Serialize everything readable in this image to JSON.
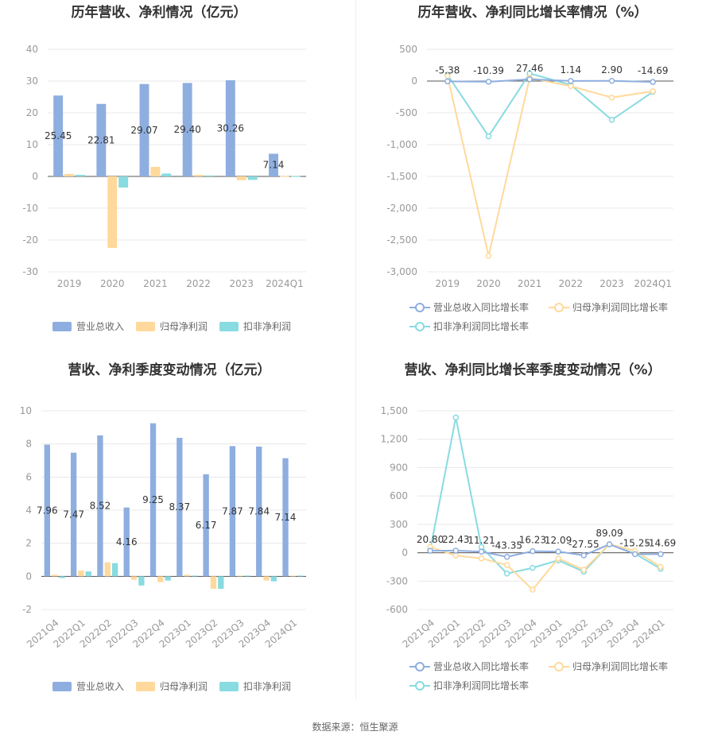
{
  "colors": {
    "revenue": "#8eaee0",
    "net_profit": "#ffd99b",
    "deducted_profit": "#88dbe0",
    "grid": "#e8e8e8",
    "axis": "#555555"
  },
  "source": "数据来源：恒生聚源",
  "chart_data": [
    {
      "type": "bar",
      "title": "历年营收、净利情况（亿元）",
      "categories": [
        "2019",
        "2020",
        "2021",
        "2022",
        "2023",
        "2024Q1"
      ],
      "ylim": [
        -30,
        40
      ],
      "yticks": [
        "40",
        "30",
        "20",
        "10",
        "0",
        "-10",
        "-20",
        "-30"
      ],
      "series": [
        {
          "name": "营业总收入",
          "values": [
            25.45,
            22.81,
            29.07,
            29.4,
            30.26,
            7.14
          ],
          "labels": [
            "25.45",
            "22.81",
            "29.07",
            "29.40",
            "30.26",
            "7.14"
          ]
        },
        {
          "name": "归母净利润",
          "values": [
            0.8,
            -22.5,
            3.0,
            0.5,
            -1.2,
            0.1
          ]
        },
        {
          "name": "扣非净利润",
          "values": [
            0.5,
            -3.5,
            0.9,
            0.3,
            -1.1,
            0.1
          ]
        }
      ],
      "legend": "bottom"
    },
    {
      "type": "line",
      "title": "历年营收、净利同比增长率情况（%）",
      "categories": [
        "2019",
        "2020",
        "2021",
        "2022",
        "2023",
        "2024Q1"
      ],
      "ylim": [
        -3000,
        500
      ],
      "yticks": [
        "500",
        "0",
        "-500",
        "-1,000",
        "-1,500",
        "-2,000",
        "-2,500",
        "-3,000"
      ],
      "series": [
        {
          "name": "营业总收入同比增长率",
          "values": [
            -5.38,
            -10.39,
            27.46,
            1.14,
            2.9,
            -14.69
          ],
          "labels": [
            "-5.38",
            "-10.39",
            "27.46",
            "1.14",
            "2.90",
            "-14.69"
          ]
        },
        {
          "name": "归母净利润同比增长率",
          "values": [
            80,
            -2750,
            50,
            -80,
            -260,
            -160
          ]
        },
        {
          "name": "扣非净利润同比增长率",
          "values": [
            100,
            -870,
            120,
            -60,
            -610,
            -170
          ]
        }
      ],
      "legend": "bottom"
    },
    {
      "type": "bar",
      "title": "营收、净利季度变动情况（亿元）",
      "categories": [
        "2021Q4",
        "2022Q1",
        "2022Q2",
        "2022Q3",
        "2022Q4",
        "2023Q1",
        "2023Q2",
        "2023Q3",
        "2023Q4",
        "2024Q1"
      ],
      "ylim": [
        -2,
        10
      ],
      "yticks": [
        "10",
        "8",
        "6",
        "4",
        "2",
        "0",
        "-2"
      ],
      "series": [
        {
          "name": "营业总收入",
          "values": [
            7.96,
            7.47,
            8.52,
            4.16,
            9.25,
            8.37,
            6.17,
            7.87,
            7.84,
            7.14
          ],
          "labels": [
            "7.96",
            "7.47",
            "8.52",
            "4.16",
            "9.25",
            "8.37",
            "6.17",
            "7.87",
            "7.84",
            "7.14"
          ]
        },
        {
          "name": "归母净利润",
          "values": [
            0.1,
            0.35,
            0.85,
            -0.2,
            -0.35,
            0.1,
            -0.75,
            0.05,
            -0.25,
            0.05
          ]
        },
        {
          "name": "扣非净利润",
          "values": [
            -0.1,
            0.3,
            0.8,
            -0.55,
            -0.25,
            0.05,
            -0.75,
            0.05,
            -0.3,
            0.05
          ]
        }
      ],
      "legend": "bottom"
    },
    {
      "type": "line",
      "title": "营收、净利同比增长率季度变动情况（%）",
      "categories": [
        "2021Q4",
        "2022Q1",
        "2022Q2",
        "2022Q3",
        "2022Q4",
        "2023Q1",
        "2023Q2",
        "2023Q3",
        "2023Q4",
        "2024Q1"
      ],
      "ylim": [
        -600,
        1500
      ],
      "yticks": [
        "1,500",
        "1,200",
        "900",
        "600",
        "300",
        "0",
        "-300",
        "-600"
      ],
      "series": [
        {
          "name": "营业总收入同比增长率",
          "values": [
            20.8,
            22.43,
            11.21,
            -43.35,
            16.23,
            12.09,
            -27.55,
            89.09,
            -15.25,
            -14.69
          ],
          "labels": [
            "20.80",
            "22.43",
            "11.21",
            "-43.35",
            "16.23",
            "12.09",
            "-27.55",
            "89.09",
            "-15.25",
            "-14.69"
          ]
        },
        {
          "name": "归母净利润同比增长率",
          "values": [
            60,
            -30,
            -60,
            -130,
            -390,
            -60,
            -180,
            90,
            20,
            -150
          ]
        },
        {
          "name": "扣非净利润同比增长率",
          "values": [
            30,
            1430,
            60,
            -220,
            -160,
            -80,
            -200,
            90,
            -10,
            -170
          ]
        }
      ],
      "legend": "bottom"
    }
  ]
}
